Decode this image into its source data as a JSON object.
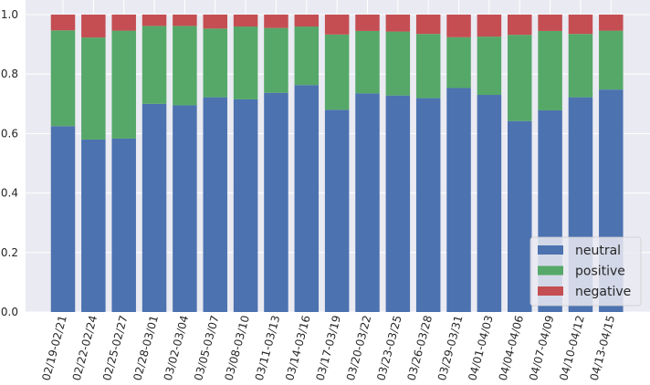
{
  "chart_data": {
    "type": "bar",
    "stacked": true,
    "title": "",
    "xlabel": "",
    "ylabel": "",
    "ylim": [
      0,
      1.0
    ],
    "yticks": [
      0.0,
      0.2,
      0.4,
      0.6,
      0.8,
      1.0
    ],
    "ytick_labels": [
      "0.0",
      "0.2",
      "0.4",
      "0.6",
      "0.8",
      "1.0"
    ],
    "grid": true,
    "legend_position": "bottom-right",
    "categories": [
      "02/19-02/21",
      "02/22-02/24",
      "02/25-02/27",
      "02/28-03/01",
      "03/02-03/04",
      "03/05-03/07",
      "03/08-03/10",
      "03/11-03/13",
      "03/14-03/16",
      "03/17-03/19",
      "03/20-03/22",
      "03/23-03/25",
      "03/26-03/28",
      "03/29-03/31",
      "04/01-04/03",
      "04/04-04/06",
      "04/07-04/09",
      "04/10-04/12",
      "04/13-04/15"
    ],
    "series": [
      {
        "name": "neutral",
        "color": "#4c72b0",
        "values": [
          0.625,
          0.58,
          0.583,
          0.7,
          0.695,
          0.722,
          0.715,
          0.737,
          0.763,
          0.68,
          0.735,
          0.728,
          0.719,
          0.753,
          0.73,
          0.642,
          0.678,
          0.722,
          0.748
        ]
      },
      {
        "name": "positive",
        "color": "#55a868",
        "values": [
          0.322,
          0.343,
          0.363,
          0.262,
          0.267,
          0.231,
          0.245,
          0.218,
          0.197,
          0.253,
          0.21,
          0.215,
          0.216,
          0.171,
          0.196,
          0.29,
          0.267,
          0.213,
          0.198
        ]
      },
      {
        "name": "negative",
        "color": "#c44e52",
        "values": [
          0.053,
          0.077,
          0.054,
          0.038,
          0.038,
          0.047,
          0.04,
          0.045,
          0.04,
          0.067,
          0.055,
          0.057,
          0.065,
          0.076,
          0.074,
          0.068,
          0.055,
          0.065,
          0.054
        ]
      }
    ]
  }
}
